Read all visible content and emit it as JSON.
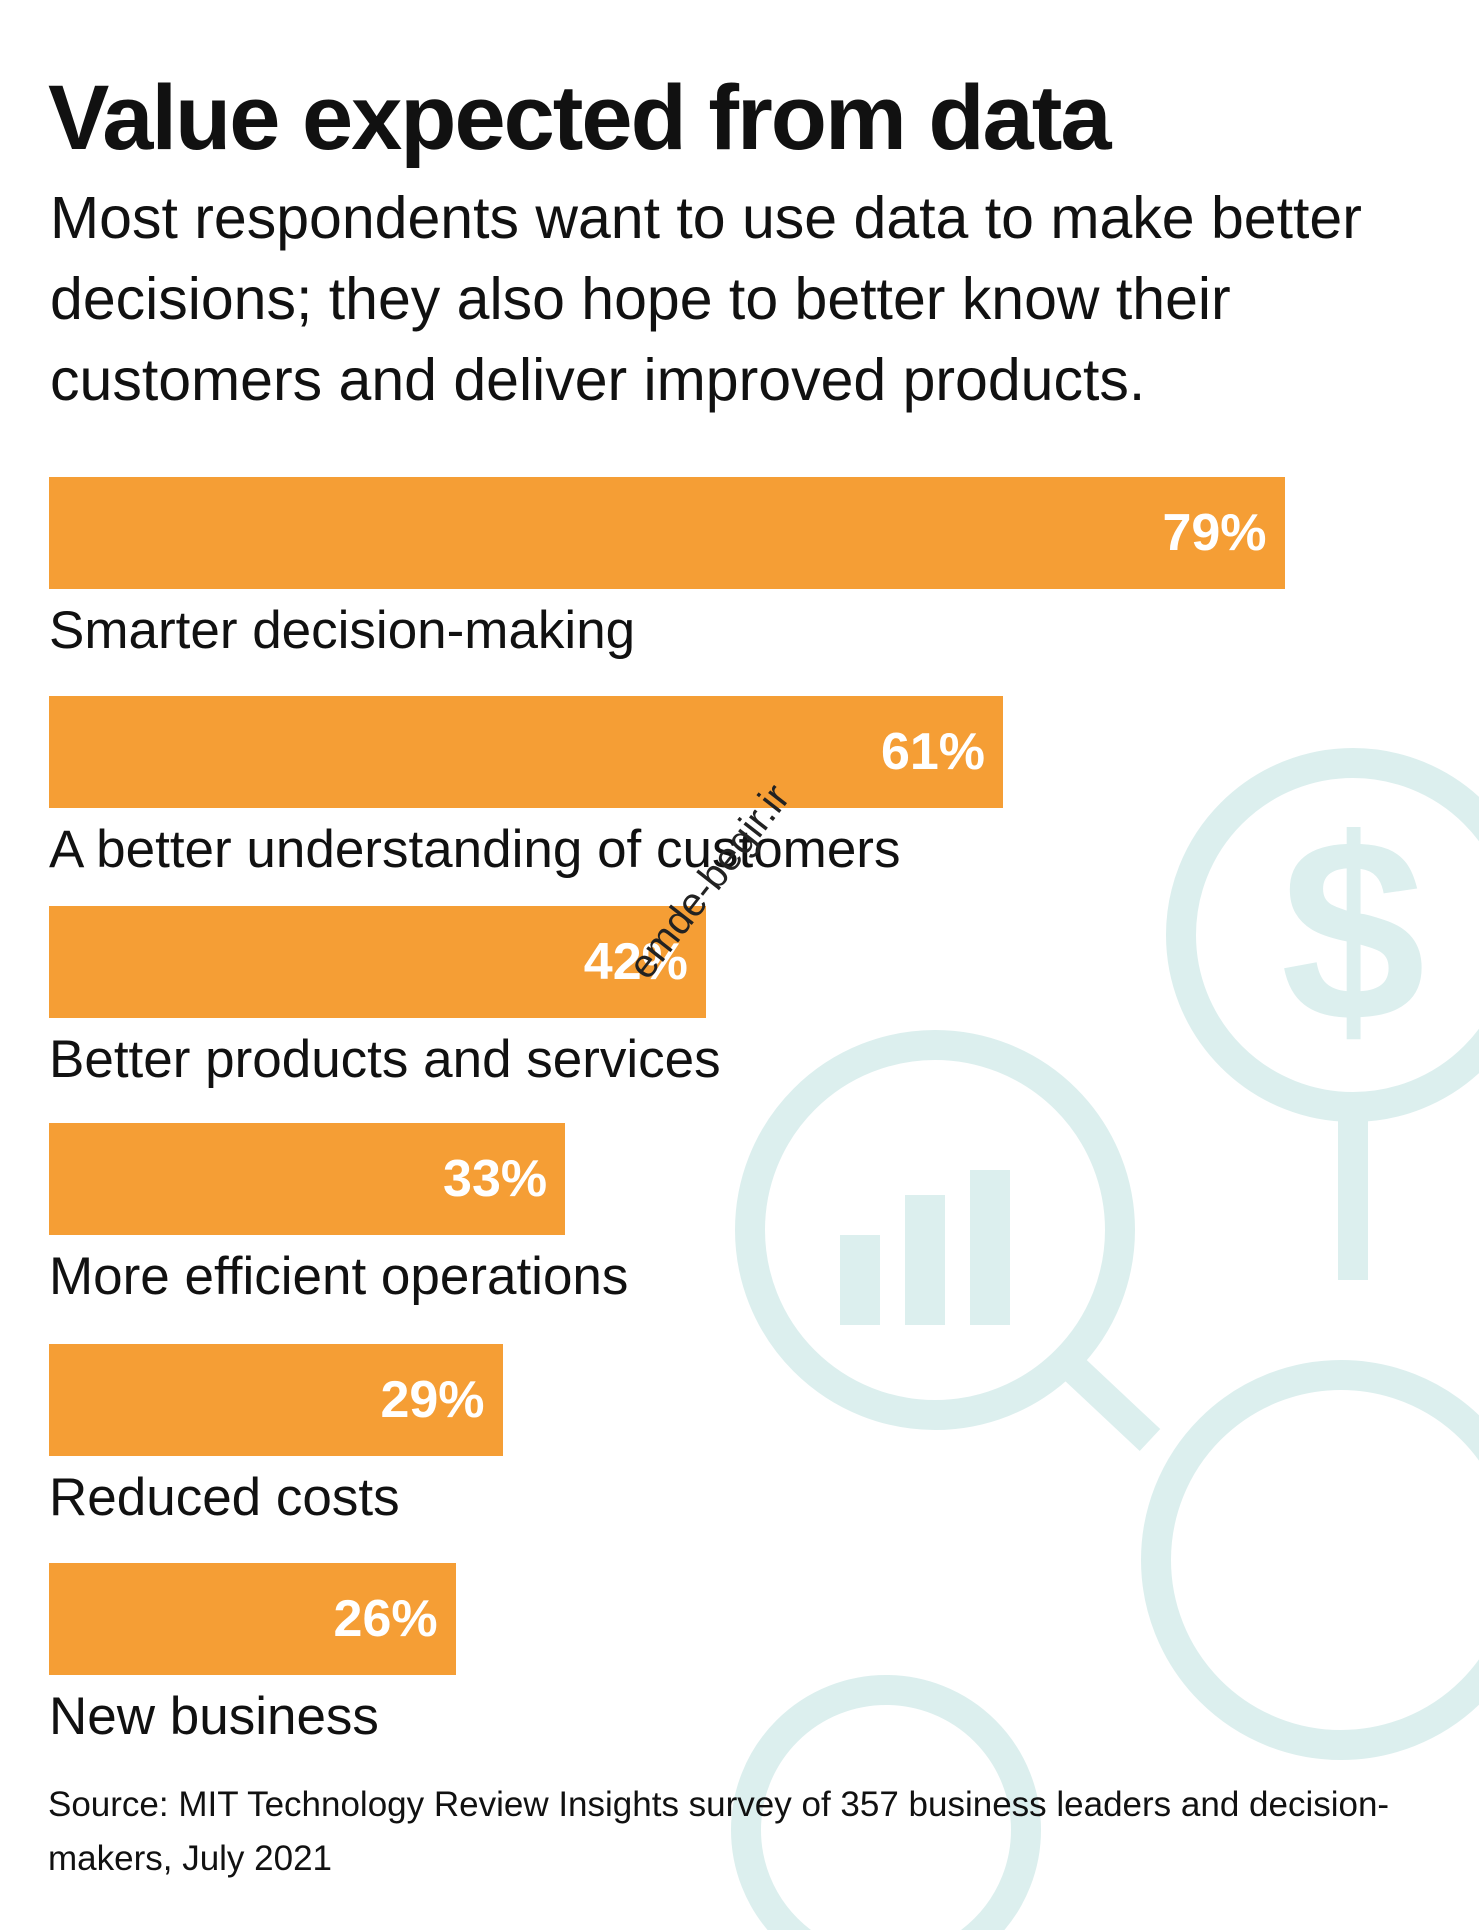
{
  "chart_data": {
    "type": "bar",
    "title": "Value expected from data",
    "subtitle": "Most respondents want to use data to make better decisions; they also hope to better know their customers and deliver improved products.",
    "categories": [
      "Smarter decision-making",
      "A better understanding of customers",
      "Better products and services",
      "More efficient operations",
      "Reduced costs",
      "New business"
    ],
    "values": [
      79,
      61,
      42,
      33,
      29,
      26
    ],
    "value_labels": [
      "79%",
      "61%",
      "42%",
      "33%",
      "29%",
      "26%"
    ],
    "color": "#f59e35",
    "source": "Source: MIT Technology Review Insights survey of 357 business leaders and decision-makers, July 2021"
  },
  "watermark": "emde-begir.ir"
}
